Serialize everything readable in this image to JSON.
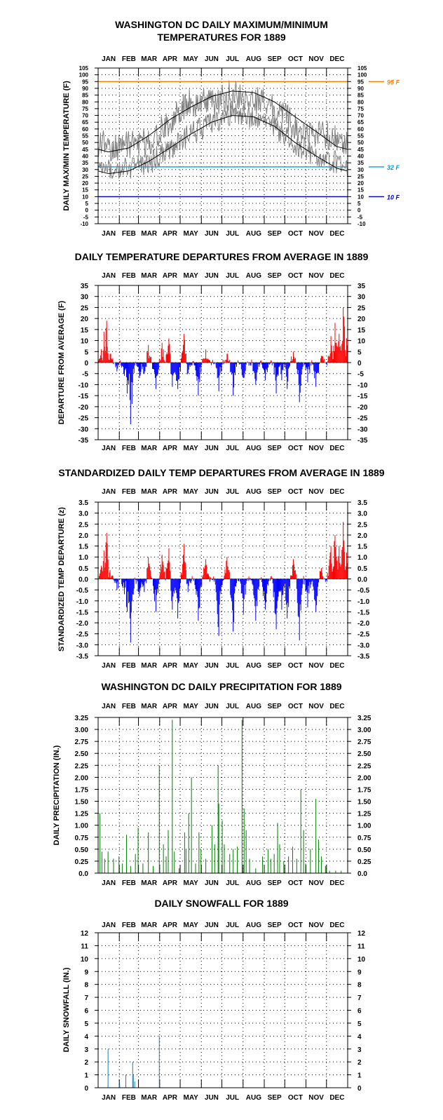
{
  "colors": {
    "axis": "#000000",
    "grid": "#000000",
    "envelope": "#000000",
    "actual": "#808080",
    "ref95": "#ff8000",
    "ref32": "#00a0e0",
    "ref10": "#0000c0",
    "positive": "#ff0000",
    "negative": "#0000ff",
    "precip": "#008000",
    "snow": "#1a7fb3"
  },
  "months": [
    "JAN",
    "FEB",
    "MAR",
    "APR",
    "MAY",
    "JUN",
    "JUL",
    "AUG",
    "SEP",
    "OCT",
    "NOV",
    "DEC"
  ],
  "chart_data": [
    {
      "type": "line",
      "title_lines": [
        "WASHINGTON DC DAILY MAXIMUM/MINIMUM",
        "TEMPERATURES FOR 1889"
      ],
      "ylabel": "DAILY MAX/MIN TEMPERATURE (F)",
      "ylim": [
        -10,
        105
      ],
      "yticks": [
        -10,
        -5,
        0,
        5,
        10,
        15,
        20,
        25,
        30,
        35,
        40,
        45,
        50,
        55,
        60,
        65,
        70,
        75,
        80,
        85,
        90,
        95,
        100,
        105
      ],
      "grid": true,
      "series": [],
      "reference_lines": [
        {
          "value": 95,
          "label": "95 F",
          "color_key": "ref95"
        },
        {
          "value": 32,
          "label": "32 F",
          "color_key": "ref32"
        },
        {
          "value": 10,
          "label": "10 F",
          "color_key": "ref10"
        }
      ],
      "normal_high": {
        "month_mid": [
          43,
          46,
          55,
          67,
          76,
          84,
          88,
          87,
          80,
          69,
          58,
          47
        ]
      },
      "normal_low": {
        "month_mid": [
          27,
          29,
          36,
          46,
          56,
          65,
          70,
          69,
          62,
          50,
          40,
          31
        ]
      },
      "daily_max": {
        "month_mid": [
          46,
          48,
          50,
          66,
          80,
          78,
          86,
          82,
          74,
          63,
          56,
          54
        ]
      },
      "daily_min": {
        "month_mid": [
          32,
          31,
          35,
          45,
          56,
          64,
          72,
          69,
          61,
          48,
          41,
          35
        ]
      }
    },
    {
      "type": "bar",
      "title": "DAILY TEMPERATURE DEPARTURES FROM AVERAGE IN 1889",
      "ylabel": "DEPARTURE FROM AVERAGE (F)",
      "ylim": [
        -35,
        35
      ],
      "yticks": [
        -35,
        -30,
        -25,
        -20,
        -15,
        -10,
        -5,
        0,
        5,
        10,
        15,
        20,
        25,
        30,
        35
      ],
      "grid": true,
      "peaks": [
        {
          "day": 4,
          "value": 6
        },
        {
          "day": 8,
          "value": 14
        },
        {
          "day": 12,
          "value": 19
        },
        {
          "day": 17,
          "value": 4
        },
        {
          "day": 27,
          "value": -4
        },
        {
          "day": 38,
          "value": -6
        },
        {
          "day": 42,
          "value": -14
        },
        {
          "day": 44,
          "value": -10
        },
        {
          "day": 46,
          "value": -17
        },
        {
          "day": 47,
          "value": -28
        },
        {
          "day": 60,
          "value": -7
        },
        {
          "day": 67,
          "value": -5
        },
        {
          "day": 73,
          "value": 8
        },
        {
          "day": 84,
          "value": -12
        },
        {
          "day": 93,
          "value": 9
        },
        {
          "day": 103,
          "value": 11
        },
        {
          "day": 108,
          "value": -11
        },
        {
          "day": 116,
          "value": -12
        },
        {
          "day": 125,
          "value": 13
        },
        {
          "day": 131,
          "value": -5
        },
        {
          "day": 146,
          "value": -15
        },
        {
          "day": 157,
          "value": 6
        },
        {
          "day": 176,
          "value": -13
        },
        {
          "day": 188,
          "value": 4
        },
        {
          "day": 197,
          "value": -15
        },
        {
          "day": 212,
          "value": -7
        },
        {
          "day": 230,
          "value": -10
        },
        {
          "day": 244,
          "value": -8
        },
        {
          "day": 260,
          "value": -14
        },
        {
          "day": 268,
          "value": -8
        },
        {
          "day": 276,
          "value": -12
        },
        {
          "day": 285,
          "value": 5
        },
        {
          "day": 294,
          "value": -18
        },
        {
          "day": 306,
          "value": -9
        },
        {
          "day": 318,
          "value": -11
        },
        {
          "day": 326,
          "value": 3
        },
        {
          "day": 340,
          "value": 12
        },
        {
          "day": 346,
          "value": 18
        },
        {
          "day": 352,
          "value": 13
        },
        {
          "day": 358,
          "value": 25
        },
        {
          "day": 363,
          "value": 11
        }
      ]
    },
    {
      "type": "bar",
      "title": "STANDARDIZED DAILY TEMP DEPARTURES FROM AVERAGE IN 1889",
      "ylabel": "STANDARDIZED TEMP DEPARTURE (z)",
      "ylim": [
        -3.5,
        3.5
      ],
      "yticks": [
        "-3.5",
        "-3.0",
        "-2.5",
        "-2.0",
        "-1.5",
        "-1.0",
        "-0.5",
        "0.0",
        "0.5",
        "1.0",
        "1.5",
        "2.0",
        "2.5",
        "3.0",
        "3.5"
      ],
      "grid": true,
      "peaks": [
        {
          "day": 4,
          "value": 0.6
        },
        {
          "day": 8,
          "value": 1.3
        },
        {
          "day": 12,
          "value": 2.1
        },
        {
          "day": 17,
          "value": 0.4
        },
        {
          "day": 27,
          "value": -0.5
        },
        {
          "day": 38,
          "value": -0.7
        },
        {
          "day": 42,
          "value": -1.5
        },
        {
          "day": 44,
          "value": -1.1
        },
        {
          "day": 46,
          "value": -1.8
        },
        {
          "day": 47,
          "value": -2.9
        },
        {
          "day": 60,
          "value": -0.8
        },
        {
          "day": 67,
          "value": -0.6
        },
        {
          "day": 73,
          "value": 1.0
        },
        {
          "day": 84,
          "value": -1.5
        },
        {
          "day": 93,
          "value": 1.1
        },
        {
          "day": 103,
          "value": 1.4
        },
        {
          "day": 108,
          "value": -1.4
        },
        {
          "day": 116,
          "value": -1.8
        },
        {
          "day": 125,
          "value": 1.6
        },
        {
          "day": 131,
          "value": -0.6
        },
        {
          "day": 146,
          "value": -1.9
        },
        {
          "day": 157,
          "value": 0.9
        },
        {
          "day": 176,
          "value": -2.6
        },
        {
          "day": 188,
          "value": 1.0
        },
        {
          "day": 197,
          "value": -2.4
        },
        {
          "day": 212,
          "value": -1.6
        },
        {
          "day": 230,
          "value": -1.9
        },
        {
          "day": 244,
          "value": -1.4
        },
        {
          "day": 260,
          "value": -2.3
        },
        {
          "day": 268,
          "value": -1.4
        },
        {
          "day": 276,
          "value": -1.8
        },
        {
          "day": 285,
          "value": 0.9
        },
        {
          "day": 294,
          "value": -2.8
        },
        {
          "day": 306,
          "value": -1.3
        },
        {
          "day": 318,
          "value": -1.5
        },
        {
          "day": 326,
          "value": 0.5
        },
        {
          "day": 340,
          "value": 1.5
        },
        {
          "day": 346,
          "value": 2.0
        },
        {
          "day": 352,
          "value": 1.5
        },
        {
          "day": 358,
          "value": 2.6
        },
        {
          "day": 363,
          "value": 1.2
        }
      ]
    },
    {
      "type": "bar",
      "title": "WASHINGTON DC DAILY PRECIPITATION FOR 1889",
      "ylabel": "DAILY PRECIPITATION (IN.)",
      "ylim": [
        0,
        3.25
      ],
      "yticks": [
        "0.0",
        "0.25",
        "0.50",
        "0.75",
        "1.00",
        "1.25",
        "1.50",
        "1.75",
        "2.00",
        "2.25",
        "2.50",
        "2.75",
        "3.00",
        "3.25"
      ],
      "grid": true,
      "events": [
        {
          "day": 2,
          "value": 1.25
        },
        {
          "day": 5,
          "value": 0.45
        },
        {
          "day": 9,
          "value": 0.3
        },
        {
          "day": 14,
          "value": 0.45
        },
        {
          "day": 22,
          "value": 0.3
        },
        {
          "day": 30,
          "value": 0.35
        },
        {
          "day": 35,
          "value": 0.2
        },
        {
          "day": 41,
          "value": 0.8
        },
        {
          "day": 47,
          "value": 0.15
        },
        {
          "day": 54,
          "value": 0.4
        },
        {
          "day": 58,
          "value": 0.95
        },
        {
          "day": 65,
          "value": 0.2
        },
        {
          "day": 73,
          "value": 0.85
        },
        {
          "day": 80,
          "value": 0.15
        },
        {
          "day": 89,
          "value": 2.25
        },
        {
          "day": 95,
          "value": 0.6
        },
        {
          "day": 99,
          "value": 0.35
        },
        {
          "day": 102,
          "value": 0.9
        },
        {
          "day": 108,
          "value": 3.2
        },
        {
          "day": 111,
          "value": 0.45
        },
        {
          "day": 118,
          "value": 0.1
        },
        {
          "day": 126,
          "value": 0.85
        },
        {
          "day": 128,
          "value": 0.5
        },
        {
          "day": 132,
          "value": 1.25
        },
        {
          "day": 136,
          "value": 2.0
        },
        {
          "day": 142,
          "value": 0.2
        },
        {
          "day": 147,
          "value": 0.85
        },
        {
          "day": 150,
          "value": 0.5
        },
        {
          "day": 157,
          "value": 0.3
        },
        {
          "day": 166,
          "value": 1.0
        },
        {
          "day": 170,
          "value": 0.6
        },
        {
          "day": 175,
          "value": 2.25
        },
        {
          "day": 176,
          "value": 1.45
        },
        {
          "day": 181,
          "value": 1.1
        },
        {
          "day": 184,
          "value": 0.6
        },
        {
          "day": 192,
          "value": 0.4
        },
        {
          "day": 197,
          "value": 0.5
        },
        {
          "day": 203,
          "value": 0.55
        },
        {
          "day": 210,
          "value": 3.2
        },
        {
          "day": 213,
          "value": 1.35
        },
        {
          "day": 216,
          "value": 0.9
        },
        {
          "day": 221,
          "value": 0.3
        },
        {
          "day": 230,
          "value": 0.1
        },
        {
          "day": 240,
          "value": 0.35
        },
        {
          "day": 248,
          "value": 0.5
        },
        {
          "day": 252,
          "value": 0.3
        },
        {
          "day": 257,
          "value": 0.4
        },
        {
          "day": 262,
          "value": 1.05
        },
        {
          "day": 265,
          "value": 0.6
        },
        {
          "day": 271,
          "value": 0.25
        },
        {
          "day": 278,
          "value": 0.35
        },
        {
          "day": 284,
          "value": 0.55
        },
        {
          "day": 290,
          "value": 0.3
        },
        {
          "day": 296,
          "value": 1.75
        },
        {
          "day": 300,
          "value": 0.9
        },
        {
          "day": 303,
          "value": 0.2
        },
        {
          "day": 310,
          "value": 0.5
        },
        {
          "day": 318,
          "value": 1.55
        },
        {
          "day": 322,
          "value": 0.7
        },
        {
          "day": 326,
          "value": 0.35
        },
        {
          "day": 332,
          "value": 0.15
        },
        {
          "day": 338,
          "value": 0.05
        },
        {
          "day": 347,
          "value": 0.05
        },
        {
          "day": 355,
          "value": 0.05
        }
      ]
    },
    {
      "type": "bar",
      "title": "DAILY SNOWFALL FOR 1889",
      "ylabel": "DAILY SNOWFALL (IN.)",
      "ylim": [
        0,
        12
      ],
      "yticks": [
        "0",
        "1",
        "2",
        "3",
        "4",
        "5",
        "6",
        "7",
        "8",
        "9",
        "10",
        "11",
        "12"
      ],
      "grid": true,
      "events": [
        {
          "day": 14,
          "value": 3.0
        },
        {
          "day": 31,
          "value": 0.3
        },
        {
          "day": 40,
          "value": 1.0
        },
        {
          "day": 50,
          "value": 2.0
        },
        {
          "day": 51,
          "value": 1.0
        },
        {
          "day": 53,
          "value": 0.5
        },
        {
          "day": 89,
          "value": 4.0
        }
      ]
    }
  ]
}
